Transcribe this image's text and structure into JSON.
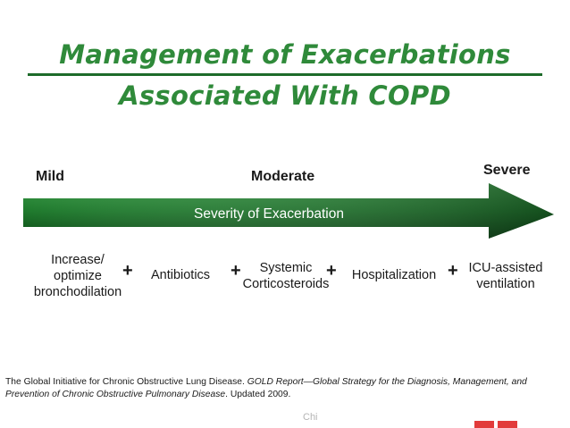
{
  "title": {
    "line1": "Management of Exacerbations",
    "line2": "Associated With COPD"
  },
  "severity_labels": {
    "mild": "Mild",
    "moderate": "Moderate",
    "severe": "Severe"
  },
  "arrow": {
    "label": "Severity of Exacerbation",
    "color_dark": "#0d4a17",
    "color_light": "#3a9a47"
  },
  "steps": [
    {
      "line1": "Increase/",
      "line2": "optimize",
      "line3": "bronchodilation"
    },
    {
      "line1": "Antibiotics"
    },
    {
      "line1": "Systemic",
      "line2": "Corticosteroids"
    },
    {
      "line1": "Hospitalization"
    },
    {
      "line1": "ICU-assisted",
      "line2": "ventilation"
    }
  ],
  "plus_sign": "+",
  "citation": {
    "part1": "The Global Initiative for Chronic Obstructive Lung Disease. ",
    "part2_italic": "GOLD Report—Global Strategy for the Diagnosis, Management, and Prevention of Chronic Obstructive Pulmonary Disease",
    "part3": ". Updated 2009."
  },
  "footer_fragment": "Chi",
  "colors": {
    "title": "#2f8a3a",
    "title_rule": "#1d6b2a",
    "text": "#1a1a1a"
  }
}
